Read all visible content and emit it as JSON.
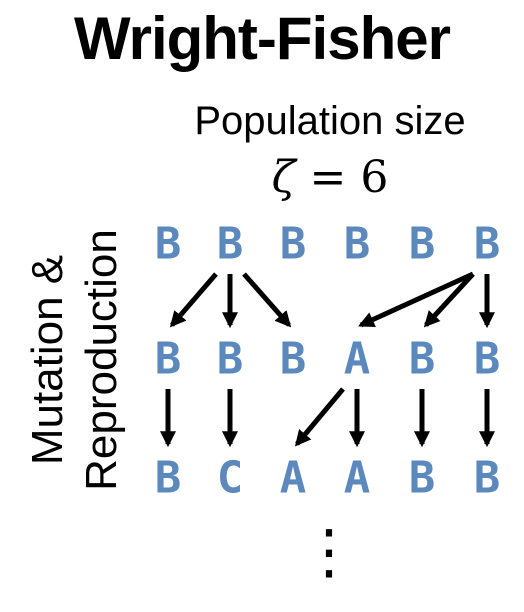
{
  "title": "Wright-Fisher",
  "population_label": "Population size",
  "equation": {
    "variable": "ζ",
    "operator": "=",
    "value": "6"
  },
  "side_label": {
    "line1": "Mutation &",
    "line2": "Reproduction"
  },
  "generations": [
    [
      "B",
      "B",
      "B",
      "B",
      "B",
      "B"
    ],
    [
      "B",
      "B",
      "B",
      "A",
      "B",
      "B"
    ],
    [
      "B",
      "C",
      "A",
      "A",
      "B",
      "B"
    ]
  ],
  "parents": [
    [
      1,
      1,
      1,
      5,
      5,
      5
    ],
    [
      0,
      1,
      3,
      3,
      4,
      5
    ]
  ],
  "continuation": "⋮",
  "colors": {
    "letter": "#5b89bd",
    "arrow": "#000000",
    "text": "#000000"
  }
}
